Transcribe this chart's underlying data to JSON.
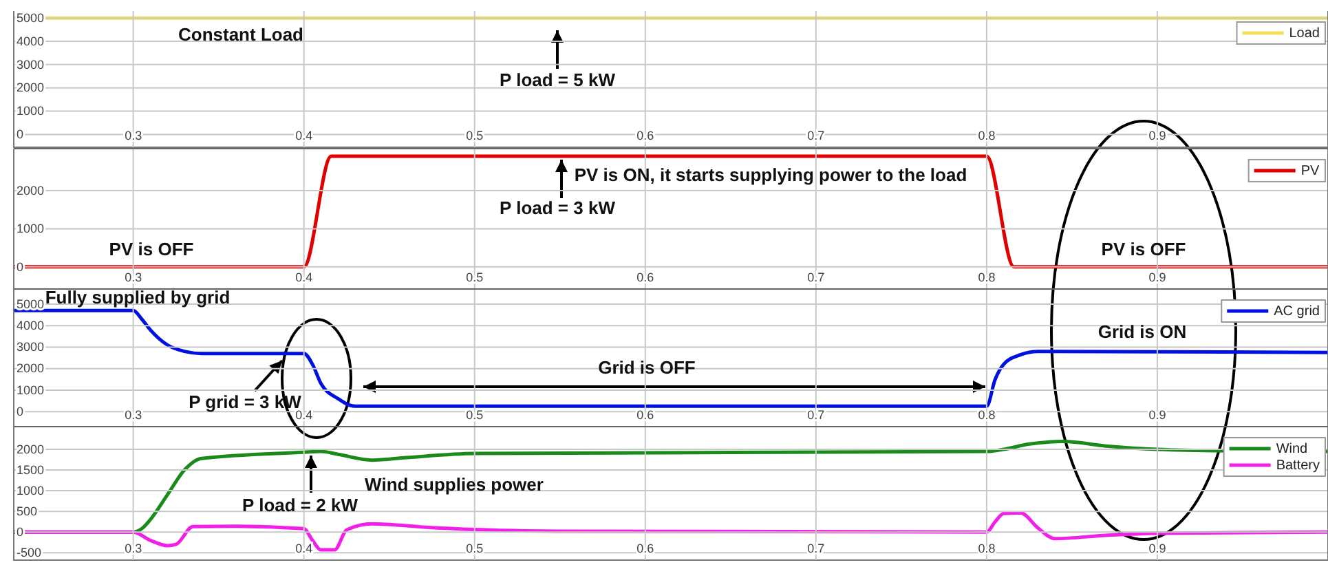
{
  "chart_data": [
    {
      "type": "line",
      "xlim": [
        0.23,
        1.0
      ],
      "xticks": [
        0.3,
        0.4,
        0.5,
        0.6,
        0.7,
        0.8,
        0.9
      ],
      "ylim": [
        -550,
        5300
      ],
      "yticks": [
        0,
        1000,
        2000,
        3000,
        4000,
        5000
      ],
      "grid": true,
      "legend": "top right",
      "series": [
        {
          "name": "Load",
          "color": "#f2e05a",
          "x": [
            0.23,
            1.0
          ],
          "values": [
            5000,
            5000
          ]
        }
      ],
      "annotations": [
        "Constant Load",
        "P load = 5 kW"
      ]
    },
    {
      "type": "line",
      "xlim": [
        0.23,
        1.0
      ],
      "xticks": [
        0.3,
        0.4,
        0.5,
        0.6,
        0.7,
        0.8,
        0.9
      ],
      "ylim": [
        -580,
        3100
      ],
      "yticks": [
        0,
        1000,
        2000
      ],
      "grid": true,
      "legend": "top right",
      "series": [
        {
          "name": "PV",
          "color": "#e00000",
          "x": [
            0.23,
            0.4,
            0.416,
            0.8,
            0.816,
            1.0
          ],
          "values": [
            0,
            0,
            2900,
            2900,
            0,
            0
          ]
        }
      ],
      "annotations": [
        "PV is ON, it starts supplying power to the load",
        "P load = 3 kW",
        "PV is OFF",
        "PV is OFF"
      ]
    },
    {
      "type": "line",
      "xlim": [
        0.23,
        1.0
      ],
      "xticks": [
        0.3,
        0.4,
        0.5,
        0.6,
        0.7,
        0.8,
        0.9
      ],
      "ylim": [
        -700,
        5700
      ],
      "yticks": [
        0,
        1000,
        2000,
        3000,
        4000,
        5000
      ],
      "grid": true,
      "legend": "top right",
      "series": [
        {
          "name": "AC grid",
          "color": "#0010e0",
          "x": [
            0.23,
            0.3,
            0.305,
            0.31,
            0.32,
            0.33,
            0.34,
            0.4,
            0.405,
            0.41,
            0.42,
            0.43,
            0.8,
            0.805,
            0.81,
            0.82,
            0.83,
            1.0
          ],
          "values": [
            4700,
            4700,
            4300,
            3800,
            3100,
            2800,
            2700,
            2700,
            2200,
            1300,
            600,
            250,
            250,
            1500,
            2200,
            2650,
            2800,
            2750
          ]
        }
      ],
      "annotations": [
        "Fully supplied by grid",
        "Grid is OFF",
        "Grid is ON",
        "P grid = 3 kW"
      ]
    },
    {
      "type": "line",
      "xlim": [
        0.23,
        1.0
      ],
      "xticks": [
        0.3,
        0.4,
        0.5,
        0.6,
        0.7,
        0.8,
        0.9
      ],
      "ylim": [
        -680,
        2550
      ],
      "yticks": [
        -500,
        0,
        500,
        1000,
        1500,
        2000
      ],
      "grid": true,
      "legend": "top right",
      "series": [
        {
          "name": "Wind",
          "color": "#1a8a1a",
          "x": [
            0.23,
            0.3,
            0.305,
            0.31,
            0.32,
            0.33,
            0.34,
            0.4,
            0.41,
            0.42,
            0.44,
            0.46,
            0.5,
            0.8,
            0.81,
            0.825,
            0.845,
            0.87,
            0.9,
            0.95,
            1.0
          ],
          "values": [
            0,
            0,
            80,
            300,
            900,
            1500,
            1780,
            1930,
            1950,
            1880,
            1740,
            1800,
            1900,
            1950,
            2000,
            2130,
            2190,
            2080,
            2000,
            1960,
            1950
          ]
        },
        {
          "name": "Battery",
          "color": "#f020e8",
          "x": [
            0.23,
            0.3,
            0.31,
            0.32,
            0.325,
            0.335,
            0.36,
            0.4,
            0.405,
            0.41,
            0.418,
            0.425,
            0.44,
            0.47,
            0.5,
            0.55,
            0.8,
            0.805,
            0.81,
            0.82,
            0.83,
            0.84,
            0.87,
            0.9,
            1.0
          ],
          "values": [
            0,
            0,
            -200,
            -330,
            -300,
            130,
            140,
            80,
            -200,
            -430,
            -430,
            50,
            200,
            120,
            60,
            20,
            0,
            250,
            450,
            460,
            100,
            -160,
            -80,
            -30,
            0
          ]
        }
      ],
      "annotations": [
        "Wind supplies power",
        "P load = 2 kW"
      ]
    }
  ]
}
